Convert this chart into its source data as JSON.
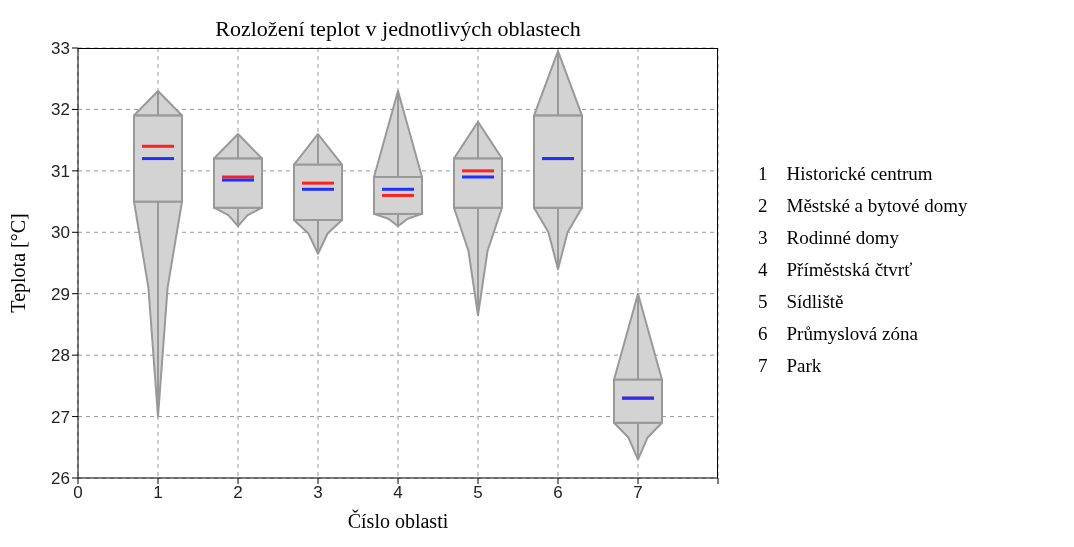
{
  "chart_data": {
    "type": "box",
    "title": "Rozložení teplot v jednotlivých oblastech",
    "xlabel": "Číslo oblasti",
    "ylabel": "Teplota [°C]",
    "x": [
      1,
      2,
      3,
      4,
      5,
      6,
      7
    ],
    "xlim": [
      0,
      8
    ],
    "xticks": [
      0,
      1,
      2,
      3,
      4,
      5,
      6,
      7,
      {
        "value": 8,
        "label": null
      }
    ],
    "ylim": [
      26,
      33
    ],
    "yticks": [
      26,
      27,
      28,
      29,
      30,
      31,
      32,
      33
    ],
    "grid": true,
    "series": [
      {
        "color": "#d3d3d3",
        "boxes": [
          {
            "low": 27.0,
            "q1": 30.5,
            "median": 31.2,
            "q3": 31.9,
            "high": 32.3,
            "mean": 31.4
          },
          {
            "low": 30.1,
            "q1": 30.4,
            "median": 30.85,
            "q3": 31.2,
            "high": 31.6,
            "mean": 30.9
          },
          {
            "low": 29.65,
            "q1": 30.2,
            "median": 30.7,
            "q3": 31.1,
            "high": 31.6,
            "mean": 30.8
          },
          {
            "low": 30.1,
            "q1": 30.3,
            "median": 30.7,
            "q3": 30.9,
            "high": 32.3,
            "mean": 30.6
          },
          {
            "low": 28.65,
            "q1": 30.4,
            "median": 30.9,
            "q3": 31.2,
            "high": 31.8,
            "mean": 31.0
          },
          {
            "low": 29.4,
            "q1": 30.4,
            "median": 31.2,
            "q3": 31.9,
            "high": 32.95,
            "mean": 31.2
          },
          {
            "low": 26.3,
            "q1": 26.9,
            "median": 27.3,
            "q3": 27.6,
            "high": 29.0,
            "mean": 27.3
          }
        ]
      }
    ],
    "annotations": [
      "1    Historické centrum",
      "2    Městské a bytové domy",
      "3    Rodinné domy",
      "4    Příměstská čtvrť",
      "5    Sídliště",
      "6    Průmyslová zóna",
      "7    Park"
    ]
  }
}
